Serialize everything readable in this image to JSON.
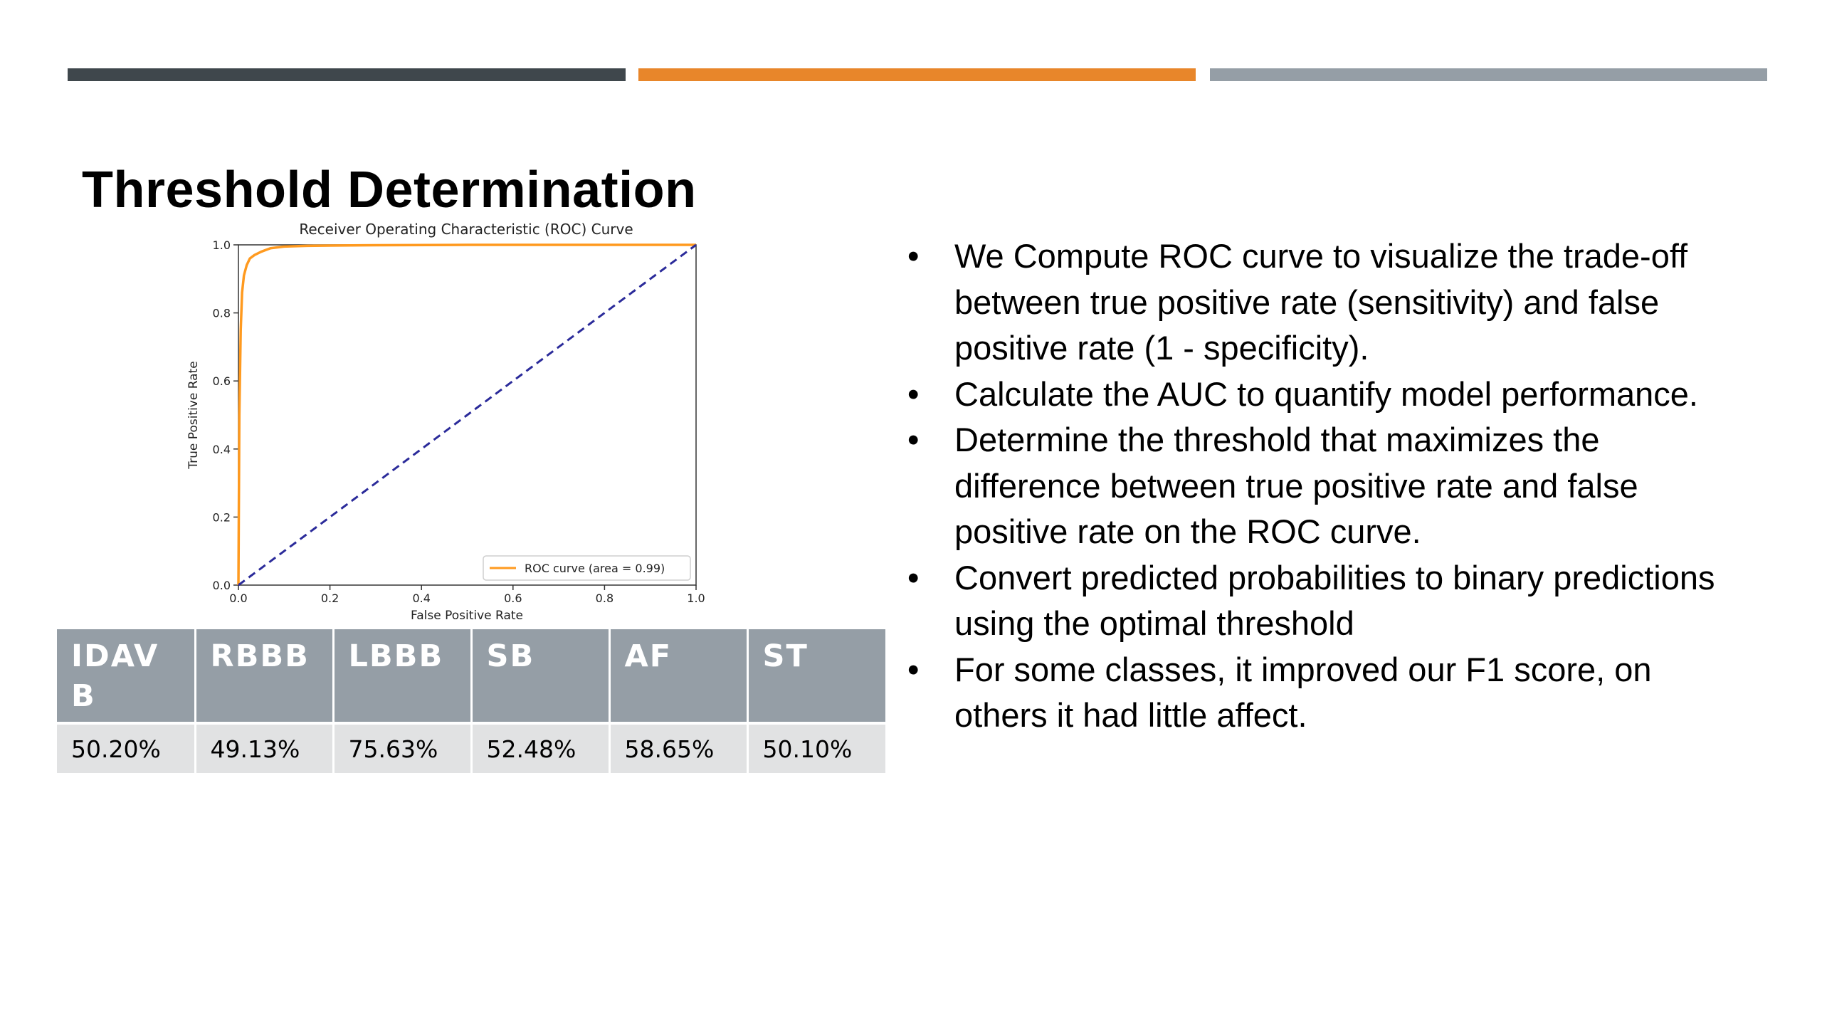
{
  "slide": {
    "title": "Threshold Determination",
    "accent_colors": [
      "#3f474c",
      "#e8862a",
      "#959ea6"
    ]
  },
  "chart_data": {
    "type": "line",
    "title": "Receiver Operating Characteristic (ROC) Curve",
    "xlabel": "False Positive Rate",
    "ylabel": "True Positive Rate",
    "xlim": [
      0.0,
      1.0
    ],
    "ylim": [
      0.0,
      1.0
    ],
    "xticks": [
      "0.0",
      "0.2",
      "0.4",
      "0.6",
      "0.8",
      "1.0"
    ],
    "yticks": [
      "0.0",
      "0.2",
      "0.4",
      "0.6",
      "0.8",
      "1.0"
    ],
    "grid": false,
    "legend_position": "bottom-right",
    "series": [
      {
        "name": "ROC curve (area = 0.99)",
        "color": "#ff9a1f",
        "style": "solid",
        "x": [
          0.0,
          0.002,
          0.005,
          0.008,
          0.012,
          0.018,
          0.025,
          0.035,
          0.05,
          0.07,
          0.1,
          0.15,
          0.2,
          0.3,
          0.5,
          0.7,
          1.0
        ],
        "y": [
          0.0,
          0.5,
          0.75,
          0.86,
          0.91,
          0.94,
          0.96,
          0.97,
          0.98,
          0.99,
          0.995,
          0.997,
          0.998,
          0.999,
          1.0,
          1.0,
          1.0
        ]
      },
      {
        "color": "#2b2b9a",
        "style": "dashed",
        "x": [
          0.0,
          1.0
        ],
        "y": [
          0.0,
          1.0
        ]
      }
    ]
  },
  "table": {
    "headers": [
      "IDAVB",
      "RBBB",
      "LBBB",
      "SB",
      "AF",
      "ST"
    ],
    "values": [
      "50.20%",
      "49.13%",
      "75.63%",
      "52.48%",
      "58.65%",
      "50.10%"
    ]
  },
  "bullets": [
    "We Compute ROC curve to visualize the trade-off between true positive rate (sensitivity) and false positive rate (1 - specificity).",
    "Calculate the AUC to quantify model performance.",
    "Determine the threshold that maximizes the difference between true positive rate and false positive rate on the ROC curve.",
    "Convert predicted probabilities to binary predictions using the optimal threshold",
    "For some classes, it improved our F1 score, on others it had little affect."
  ]
}
